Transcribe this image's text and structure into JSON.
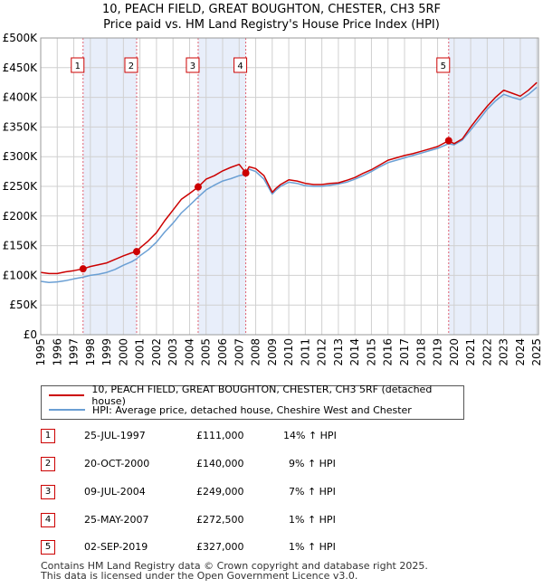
{
  "title": "10, PEACH FIELD, GREAT BOUGHTON, CHESTER, CH3 5RF",
  "subtitle": "Price paid vs. HM Land Registry's House Price Index (HPI)",
  "chart_data": {
    "type": "line",
    "title": "10, PEACH FIELD, GREAT BOUGHTON, CHESTER, CH3 5RF",
    "subtitle": "Price paid vs. HM Land Registry's House Price Index (HPI)",
    "xlim": [
      1995,
      2025.1
    ],
    "ylim": [
      0,
      500000
    ],
    "x_ticks": [
      "1995",
      "1996",
      "1997",
      "1998",
      "1999",
      "2000",
      "2001",
      "2002",
      "2003",
      "2004",
      "2005",
      "2006",
      "2007",
      "2008",
      "2009",
      "2010",
      "2011",
      "2012",
      "2013",
      "2014",
      "2015",
      "2016",
      "2017",
      "2018",
      "2019",
      "2020",
      "2021",
      "2022",
      "2023",
      "2024",
      "2025"
    ],
    "y_ticks": [
      {
        "value": 0,
        "label": "£0"
      },
      {
        "value": 50000,
        "label": "£50K"
      },
      {
        "value": 100000,
        "label": "£100K"
      },
      {
        "value": 150000,
        "label": "£150K"
      },
      {
        "value": 200000,
        "label": "£200K"
      },
      {
        "value": 250000,
        "label": "£250K"
      },
      {
        "value": 300000,
        "label": "£300K"
      },
      {
        "value": 350000,
        "label": "£350K"
      },
      {
        "value": 400000,
        "label": "£400K"
      },
      {
        "value": 450000,
        "label": "£450K"
      },
      {
        "value": 500000,
        "label": "£500K"
      }
    ],
    "grid": true,
    "shaded_periods": [
      [
        1997.56,
        2000.8
      ],
      [
        2004.52,
        2007.4
      ],
      [
        2019.67,
        2025.1
      ]
    ],
    "series": [
      {
        "name": "10, PEACH FIELD, GREAT BOUGHTON, CHESTER, CH3 5RF (detached house)",
        "color": "#cc0000",
        "x": [
          1995.0,
          1995.5,
          1996.0,
          1996.5,
          1997.0,
          1997.56,
          1998.0,
          1998.5,
          1999.0,
          1999.5,
          2000.0,
          2000.5,
          2000.8,
          2001.0,
          2001.5,
          2002.0,
          2002.5,
          2003.0,
          2003.5,
          2004.0,
          2004.52,
          2005.0,
          2005.5,
          2006.0,
          2006.5,
          2007.0,
          2007.4,
          2007.6,
          2008.0,
          2008.5,
          2009.0,
          2009.2,
          2009.5,
          2010.0,
          2010.5,
          2011.0,
          2011.5,
          2012.0,
          2012.5,
          2013.0,
          2013.5,
          2014.0,
          2014.5,
          2015.0,
          2015.5,
          2016.0,
          2016.5,
          2017.0,
          2017.5,
          2018.0,
          2018.5,
          2019.0,
          2019.67,
          2020.0,
          2020.5,
          2021.0,
          2021.5,
          2022.0,
          2022.5,
          2023.0,
          2023.5,
          2024.0,
          2024.5,
          2025.0
        ],
        "values": [
          105000,
          103000,
          103000,
          106000,
          108000,
          111000,
          115000,
          118000,
          121000,
          127000,
          133000,
          138000,
          140000,
          146000,
          158000,
          172000,
          192000,
          210000,
          228000,
          238000,
          249000,
          262000,
          268000,
          276000,
          282000,
          287000,
          272500,
          283000,
          280000,
          268000,
          240000,
          246000,
          253000,
          261000,
          259000,
          255000,
          253000,
          253000,
          255000,
          256000,
          260000,
          265000,
          272000,
          278000,
          286000,
          294000,
          298000,
          302000,
          305000,
          309000,
          313000,
          317000,
          327000,
          322000,
          330000,
          350000,
          368000,
          385000,
          400000,
          412000,
          407000,
          402000,
          412000,
          425000
        ]
      },
      {
        "name": "HPI: Average price, detached house, Cheshire West and Chester",
        "color": "#6a9fd4",
        "x": [
          1995.0,
          1995.5,
          1996.0,
          1996.5,
          1997.0,
          1997.56,
          1998.0,
          1998.5,
          1999.0,
          1999.5,
          2000.0,
          2000.5,
          2000.8,
          2001.0,
          2001.5,
          2002.0,
          2002.5,
          2003.0,
          2003.5,
          2004.0,
          2004.52,
          2005.0,
          2005.5,
          2006.0,
          2006.5,
          2007.0,
          2007.4,
          2007.6,
          2008.0,
          2008.5,
          2009.0,
          2009.2,
          2009.5,
          2010.0,
          2010.5,
          2011.0,
          2011.5,
          2012.0,
          2012.5,
          2013.0,
          2013.5,
          2014.0,
          2014.5,
          2015.0,
          2015.5,
          2016.0,
          2016.5,
          2017.0,
          2017.5,
          2018.0,
          2018.5,
          2019.0,
          2019.67,
          2020.0,
          2020.5,
          2021.0,
          2021.5,
          2022.0,
          2022.5,
          2023.0,
          2023.5,
          2024.0,
          2024.5,
          2025.0
        ],
        "values": [
          90000,
          88000,
          89000,
          91000,
          94000,
          97000,
          100000,
          102000,
          105000,
          110000,
          117000,
          123000,
          128000,
          133000,
          143000,
          156000,
          173000,
          188000,
          205000,
          218000,
          232000,
          244000,
          252000,
          259000,
          263000,
          268000,
          270000,
          279000,
          275000,
          262000,
          237000,
          243000,
          250000,
          257000,
          255000,
          251000,
          250000,
          250000,
          252000,
          254000,
          257000,
          262000,
          268000,
          275000,
          283000,
          290000,
          294000,
          298000,
          302000,
          306000,
          310000,
          314000,
          322000,
          320000,
          328000,
          345000,
          362000,
          380000,
          394000,
          405000,
          400000,
          396000,
          405000,
          417000
        ]
      }
    ],
    "sales": [
      {
        "n": "1",
        "x": 1997.56,
        "price": 111000
      },
      {
        "n": "2",
        "x": 2000.8,
        "price": 140000
      },
      {
        "n": "3",
        "x": 2004.52,
        "price": 249000
      },
      {
        "n": "4",
        "x": 2007.4,
        "price": 272500
      },
      {
        "n": "5",
        "x": 2019.67,
        "price": 327000
      }
    ]
  },
  "legend": {
    "property": "10, PEACH FIELD, GREAT BOUGHTON, CHESTER, CH3 5RF (detached house)",
    "hpi": "HPI: Average price, detached house, Cheshire West and Chester",
    "property_color": "#cc0000",
    "hpi_color": "#6a9fd4"
  },
  "transactions": [
    {
      "n": "1",
      "date": "25-JUL-1997",
      "price": "£111,000",
      "hpi": "14% ↑ HPI"
    },
    {
      "n": "2",
      "date": "20-OCT-2000",
      "price": "£140,000",
      "hpi": "9% ↑ HPI"
    },
    {
      "n": "3",
      "date": "09-JUL-2004",
      "price": "£249,000",
      "hpi": "7% ↑ HPI"
    },
    {
      "n": "4",
      "date": "25-MAY-2007",
      "price": "£272,500",
      "hpi": "1% ↑ HPI"
    },
    {
      "n": "5",
      "date": "02-SEP-2019",
      "price": "£327,000",
      "hpi": "1% ↑ HPI"
    }
  ],
  "footer": {
    "line1": "Contains HM Land Registry data © Crown copyright and database right 2025.",
    "line2": "This data is licensed under the Open Government Licence v3.0."
  }
}
